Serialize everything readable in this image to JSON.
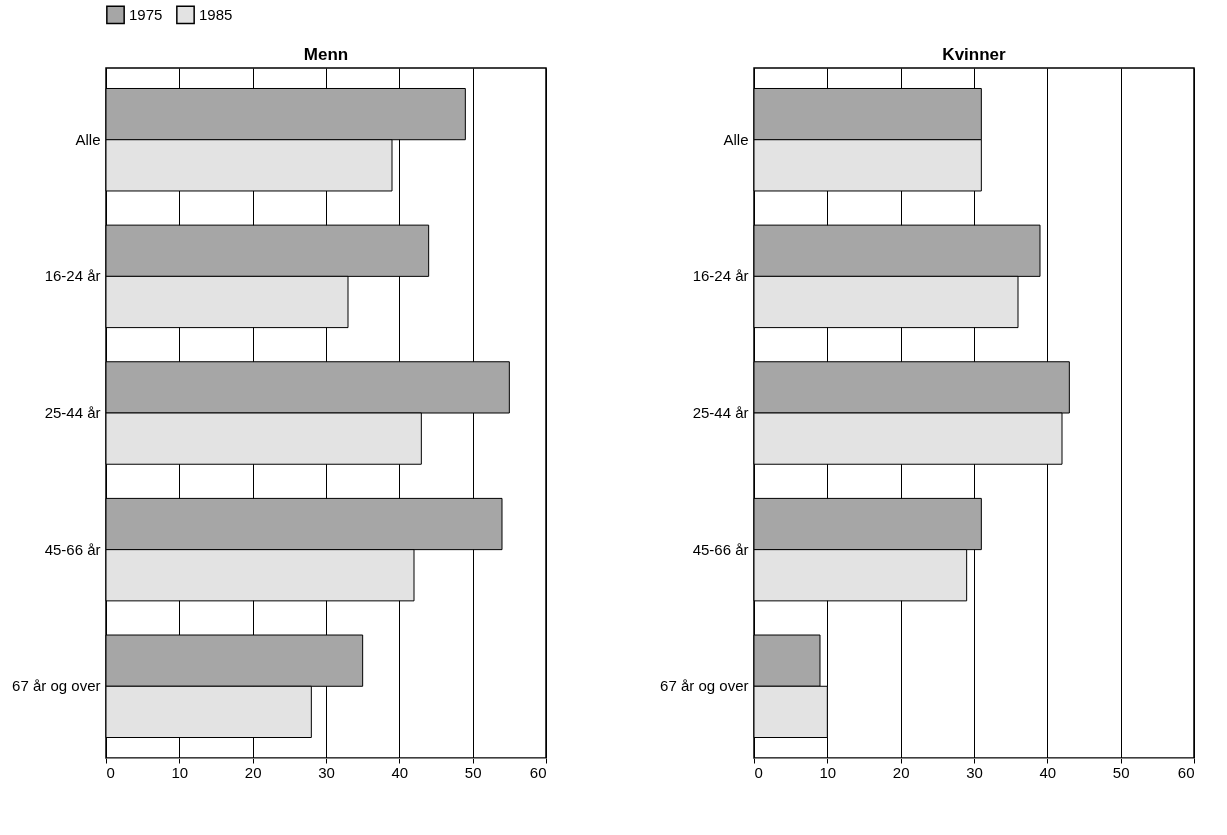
{
  "chart_data": [
    {
      "type": "bar",
      "title": "Menn",
      "orientation": "horizontal",
      "categories": [
        "Alle",
        "16-24 år",
        "25-44 år",
        "45-66 år",
        "67 år og over"
      ],
      "series": [
        {
          "name": "1975",
          "color": "#a6a6a6",
          "values": [
            49,
            44,
            55,
            54,
            35
          ]
        },
        {
          "name": "1985",
          "color": "#e3e3e3",
          "values": [
            39,
            33,
            43,
            42,
            28
          ]
        }
      ],
      "xlim": [
        0,
        60
      ],
      "xticks": [
        0,
        10,
        20,
        30,
        40,
        50,
        60
      ],
      "grid": "x",
      "legend": "top"
    },
    {
      "type": "bar",
      "title": "Kvinner",
      "orientation": "horizontal",
      "categories": [
        "Alle",
        "16-24 år",
        "25-44 år",
        "45-66 år",
        "67 år og over"
      ],
      "series": [
        {
          "name": "1975",
          "color": "#a6a6a6",
          "values": [
            31,
            39,
            43,
            31,
            9
          ]
        },
        {
          "name": "1985",
          "color": "#e3e3e3",
          "values": [
            31,
            36,
            42,
            29,
            10
          ]
        }
      ],
      "xlim": [
        0,
        60
      ],
      "xticks": [
        0,
        10,
        20,
        30,
        40,
        50,
        60
      ],
      "grid": "x",
      "legend": "top"
    }
  ]
}
